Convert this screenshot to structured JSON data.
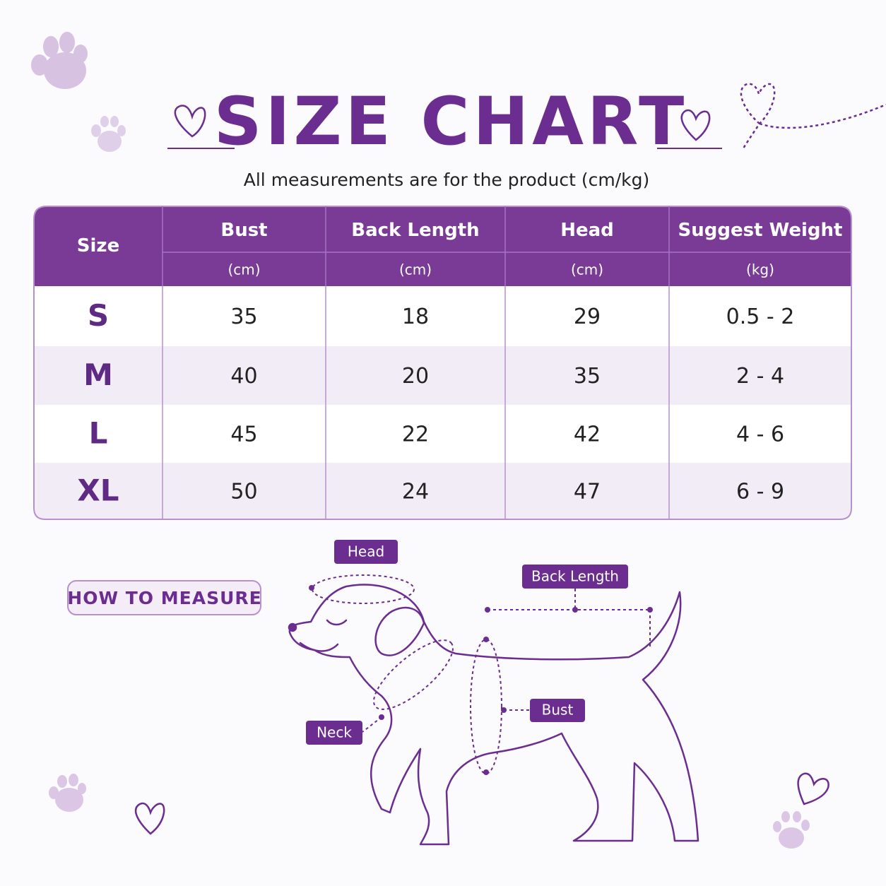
{
  "header": {
    "title": "SIZE CHART",
    "subtitle": "All measurements are for the product (cm/kg)"
  },
  "table": {
    "columns": [
      {
        "name": "Size"
      },
      {
        "name": "Bust",
        "unit": "(cm)"
      },
      {
        "name": "Back Length",
        "unit": "(cm)"
      },
      {
        "name": "Head",
        "unit": "(cm)"
      },
      {
        "name": "Suggest Weight",
        "unit": "(kg)"
      }
    ],
    "rows": [
      [
        "S",
        35,
        18,
        29,
        "0.5 - 2"
      ],
      [
        "M",
        40,
        20,
        35,
        "2 - 4"
      ],
      [
        "L",
        45,
        22,
        42,
        "4 - 6"
      ],
      [
        "XL",
        50,
        24,
        47,
        "6 - 9"
      ]
    ]
  },
  "how_to_measure": "HOW TO MEASURE",
  "diagram": {
    "labels": {
      "head": "Head",
      "back_length": "Back Length",
      "bust": "Bust",
      "neck": "Neck"
    }
  }
}
